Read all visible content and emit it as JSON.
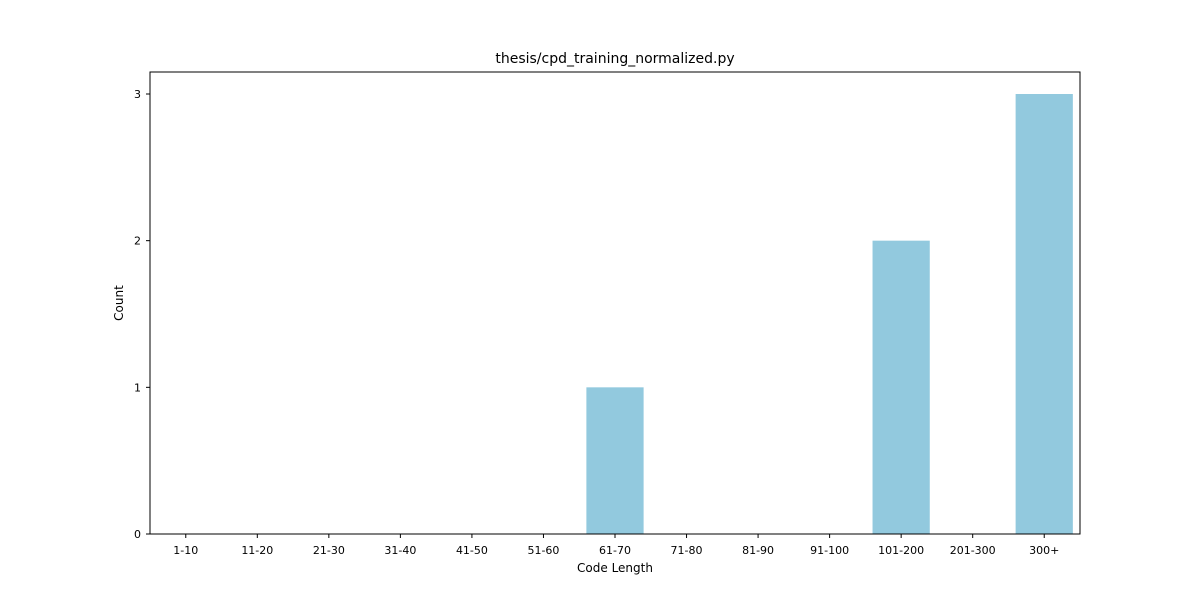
{
  "chart_data": {
    "type": "bar",
    "title": "thesis/cpd_training_normalized.py",
    "xlabel": "Code Length",
    "ylabel": "Count",
    "categories": [
      "1-10",
      "11-20",
      "21-30",
      "31-40",
      "41-50",
      "51-60",
      "61-70",
      "71-80",
      "81-90",
      "91-100",
      "101-200",
      "201-300",
      "300+"
    ],
    "values": [
      0,
      0,
      0,
      0,
      0,
      0,
      1,
      0,
      0,
      0,
      2,
      0,
      3
    ],
    "yticks": [
      0,
      1,
      2,
      3
    ],
    "ylim": [
      0,
      3.15
    ],
    "bar_color": "#92c9de",
    "grid": false,
    "legend": "none"
  }
}
